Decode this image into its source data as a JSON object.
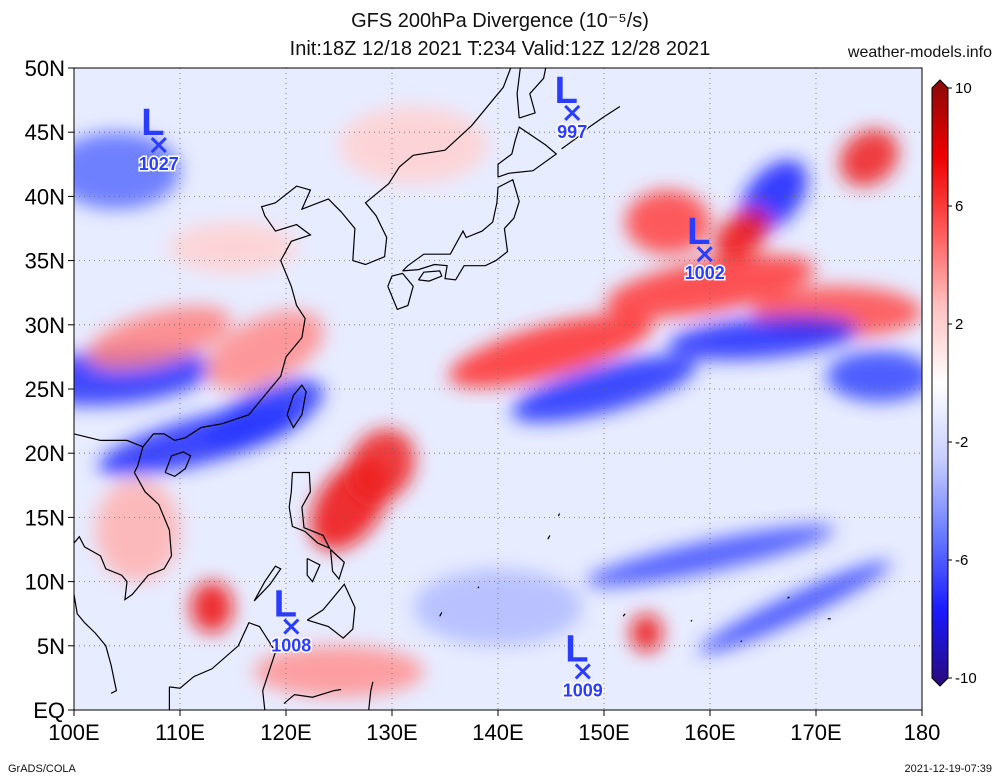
{
  "title_line1": "GFS 200hPa Divergence (10⁻⁵/s)",
  "title_line2": "Init:18Z 12/18 2021 T:234 Valid:12Z 12/28 2021",
  "site": "weather-models.info",
  "footer_left": "GrADS/COLA",
  "footer_right": "2021-12-19-07:39",
  "map": {
    "lon_range": [
      100,
      180
    ],
    "lat_range": [
      0,
      50
    ],
    "x_ticks": [
      {
        "value": 100,
        "label": "100E"
      },
      {
        "value": 110,
        "label": "110E"
      },
      {
        "value": 120,
        "label": "120E"
      },
      {
        "value": 130,
        "label": "130E"
      },
      {
        "value": 140,
        "label": "140E"
      },
      {
        "value": 150,
        "label": "150E"
      },
      {
        "value": 160,
        "label": "160E"
      },
      {
        "value": 170,
        "label": "170E"
      },
      {
        "value": 180,
        "label": "180"
      }
    ],
    "y_ticks": [
      {
        "value": 0,
        "label": "EQ"
      },
      {
        "value": 5,
        "label": "5N"
      },
      {
        "value": 10,
        "label": "10N"
      },
      {
        "value": 15,
        "label": "15N"
      },
      {
        "value": 20,
        "label": "20N"
      },
      {
        "value": 25,
        "label": "25N"
      },
      {
        "value": 30,
        "label": "30N"
      },
      {
        "value": 35,
        "label": "35N"
      },
      {
        "value": 40,
        "label": "40N"
      },
      {
        "value": 45,
        "label": "45N"
      },
      {
        "value": 50,
        "label": "50N"
      }
    ],
    "lows": [
      {
        "label": "L",
        "value": "1027",
        "lon": 108,
        "lat": 44
      },
      {
        "label": "L",
        "value": "997",
        "lon": 147,
        "lat": 46.5
      },
      {
        "label": "L",
        "value": "1002",
        "lon": 159.5,
        "lat": 35.5
      },
      {
        "label": "L",
        "value": "1008",
        "lon": 120.5,
        "lat": 6.5
      },
      {
        "label": "L",
        "value": "1009",
        "lon": 148,
        "lat": 3
      }
    ]
  },
  "colorbar": {
    "range": [
      -10,
      10
    ],
    "labels": [
      {
        "value": 10,
        "label": "10"
      },
      {
        "value": 6,
        "label": "6"
      },
      {
        "value": 2,
        "label": "2"
      },
      {
        "value": -2,
        "label": "-2"
      },
      {
        "value": -6,
        "label": "-6"
      },
      {
        "value": -10,
        "label": "-10"
      }
    ],
    "stops": [
      "#2a0a7a",
      "#1a1aff",
      "#6a7cff",
      "#c8ceff",
      "#ffffff",
      "#ffc2c2",
      "#ff5a5a",
      "#ee0000",
      "#8a0a0a"
    ]
  }
}
